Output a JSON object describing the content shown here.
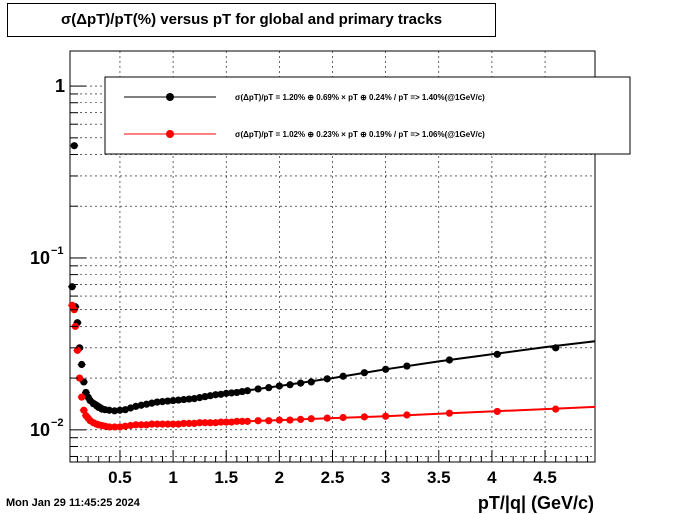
{
  "chart_data": {
    "type": "scatter",
    "title": "σ(ΔpT)/pT(%) versus pT for global and primary tracks",
    "xlabel": "pT/|q| (GeV/c)",
    "ylabel": "",
    "xlim": [
      0.03,
      4.97
    ],
    "ylim": [
      0.0065,
      1.6
    ],
    "yscale": "log",
    "grid": true,
    "legend_position": "top-right",
    "x_ticks": [
      0.5,
      1,
      1.5,
      2,
      2.5,
      3,
      3.5,
      4,
      4.5
    ],
    "x_tick_labels": [
      "0.5",
      "1",
      "1.5",
      "2",
      "2.5",
      "3",
      "3.5",
      "4",
      "4.5"
    ],
    "y_ticks": [
      1,
      0.1,
      0.01
    ],
    "y_tick_labels": [
      {
        "base": "1",
        "exp": ""
      },
      {
        "base": "10",
        "exp": "−1"
      },
      {
        "base": "10",
        "exp": "−2"
      }
    ],
    "series": [
      {
        "name": "σ(ΔpT)/pT =  1.20% ⊕  0.69% × pT ⊕  0.24% / pT =>  1.40%(@1GeV/c)",
        "color": "#000000",
        "points": [
          [
            0.05,
            0.068
          ],
          [
            0.07,
            0.45
          ],
          [
            0.08,
            0.052
          ],
          [
            0.1,
            0.042
          ],
          [
            0.12,
            0.03
          ],
          [
            0.14,
            0.024
          ],
          [
            0.16,
            0.019
          ],
          [
            0.18,
            0.0165
          ],
          [
            0.2,
            0.0155
          ],
          [
            0.22,
            0.0148
          ],
          [
            0.25,
            0.0142
          ],
          [
            0.28,
            0.0138
          ],
          [
            0.3,
            0.0135
          ],
          [
            0.33,
            0.0132
          ],
          [
            0.36,
            0.0131
          ],
          [
            0.4,
            0.013
          ],
          [
            0.45,
            0.0129
          ],
          [
            0.5,
            0.013
          ],
          [
            0.55,
            0.0131
          ],
          [
            0.6,
            0.0134
          ],
          [
            0.65,
            0.0137
          ],
          [
            0.7,
            0.0139
          ],
          [
            0.75,
            0.0141
          ],
          [
            0.8,
            0.0143
          ],
          [
            0.85,
            0.0145
          ],
          [
            0.9,
            0.0146
          ],
          [
            0.95,
            0.0147
          ],
          [
            1.0,
            0.0148
          ],
          [
            1.05,
            0.0149
          ],
          [
            1.1,
            0.015
          ],
          [
            1.15,
            0.0151
          ],
          [
            1.2,
            0.0152
          ],
          [
            1.25,
            0.0154
          ],
          [
            1.3,
            0.0156
          ],
          [
            1.35,
            0.0158
          ],
          [
            1.4,
            0.016
          ],
          [
            1.45,
            0.0161
          ],
          [
            1.5,
            0.0163
          ],
          [
            1.55,
            0.0164
          ],
          [
            1.6,
            0.0165
          ],
          [
            1.65,
            0.0167
          ],
          [
            1.7,
            0.0169
          ],
          [
            1.8,
            0.0173
          ],
          [
            1.9,
            0.0176
          ],
          [
            2.0,
            0.018
          ],
          [
            2.1,
            0.0183
          ],
          [
            2.2,
            0.0187
          ],
          [
            2.3,
            0.019
          ],
          [
            2.45,
            0.0198
          ],
          [
            2.6,
            0.0205
          ],
          [
            2.8,
            0.0215
          ],
          [
            3.0,
            0.0225
          ],
          [
            3.2,
            0.0235
          ],
          [
            3.6,
            0.0255
          ],
          [
            4.05,
            0.0275
          ],
          [
            4.6,
            0.03
          ]
        ],
        "fit": [
          [
            0.2,
            0.0155
          ],
          [
            0.4,
            0.013
          ],
          [
            0.6,
            0.0134
          ],
          [
            0.8,
            0.0143
          ],
          [
            1.0,
            0.0148
          ],
          [
            1.5,
            0.0163
          ],
          [
            2.0,
            0.018
          ],
          [
            2.5,
            0.02
          ],
          [
            3.0,
            0.0225
          ],
          [
            3.5,
            0.025
          ],
          [
            4.0,
            0.0275
          ],
          [
            4.5,
            0.0303
          ],
          [
            4.97,
            0.0328
          ]
        ]
      },
      {
        "name": "σ(ΔpT)/pT =  1.02% ⊕  0.23% × pT ⊕  0.19% / pT =>  1.06%(@1GeV/c)",
        "color": "#ff0000",
        "points": [
          [
            0.05,
            0.053
          ],
          [
            0.07,
            0.05
          ],
          [
            0.08,
            0.04
          ],
          [
            0.1,
            0.029
          ],
          [
            0.12,
            0.02
          ],
          [
            0.14,
            0.0155
          ],
          [
            0.16,
            0.013
          ],
          [
            0.18,
            0.0121
          ],
          [
            0.2,
            0.0117
          ],
          [
            0.22,
            0.0113
          ],
          [
            0.25,
            0.011
          ],
          [
            0.28,
            0.0108
          ],
          [
            0.3,
            0.0107
          ],
          [
            0.33,
            0.0106
          ],
          [
            0.36,
            0.0105
          ],
          [
            0.4,
            0.0104
          ],
          [
            0.45,
            0.0104
          ],
          [
            0.5,
            0.0104
          ],
          [
            0.55,
            0.0105
          ],
          [
            0.6,
            0.0106
          ],
          [
            0.65,
            0.0107
          ],
          [
            0.7,
            0.0107
          ],
          [
            0.75,
            0.0107
          ],
          [
            0.8,
            0.0108
          ],
          [
            0.85,
            0.0108
          ],
          [
            0.9,
            0.0108
          ],
          [
            0.95,
            0.0108
          ],
          [
            1.0,
            0.0108
          ],
          [
            1.05,
            0.0108
          ],
          [
            1.1,
            0.0109
          ],
          [
            1.15,
            0.0109
          ],
          [
            1.2,
            0.0109
          ],
          [
            1.25,
            0.011
          ],
          [
            1.3,
            0.011
          ],
          [
            1.35,
            0.011
          ],
          [
            1.4,
            0.011
          ],
          [
            1.45,
            0.0111
          ],
          [
            1.5,
            0.0111
          ],
          [
            1.55,
            0.0111
          ],
          [
            1.6,
            0.0112
          ],
          [
            1.65,
            0.0112
          ],
          [
            1.7,
            0.0112
          ],
          [
            1.8,
            0.0113
          ],
          [
            1.9,
            0.0113
          ],
          [
            2.0,
            0.0114
          ],
          [
            2.1,
            0.0114
          ],
          [
            2.2,
            0.0115
          ],
          [
            2.3,
            0.0116
          ],
          [
            2.45,
            0.0117
          ],
          [
            2.6,
            0.0118
          ],
          [
            2.8,
            0.0119
          ],
          [
            3.0,
            0.012
          ],
          [
            3.2,
            0.0122
          ],
          [
            3.6,
            0.0125
          ],
          [
            4.05,
            0.0128
          ],
          [
            4.6,
            0.0132
          ]
        ],
        "fit": [
          [
            0.2,
            0.0117
          ],
          [
            0.4,
            0.0104
          ],
          [
            0.6,
            0.0106
          ],
          [
            0.8,
            0.0108
          ],
          [
            1.0,
            0.0108
          ],
          [
            1.5,
            0.0111
          ],
          [
            2.0,
            0.0114
          ],
          [
            2.5,
            0.0117
          ],
          [
            3.0,
            0.012
          ],
          [
            3.5,
            0.0124
          ],
          [
            4.0,
            0.0128
          ],
          [
            4.5,
            0.0132
          ],
          [
            4.97,
            0.0136
          ]
        ]
      }
    ]
  },
  "footer": {
    "timestamp": "Mon Jan 29 11:45:25 2024"
  }
}
